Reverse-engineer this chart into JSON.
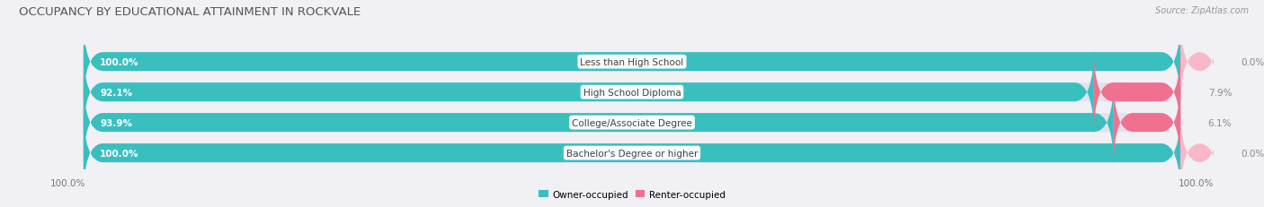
{
  "title": "OCCUPANCY BY EDUCATIONAL ATTAINMENT IN ROCKVALE",
  "source": "Source: ZipAtlas.com",
  "categories": [
    "Less than High School",
    "High School Diploma",
    "College/Associate Degree",
    "Bachelor's Degree or higher"
  ],
  "owner_values": [
    100.0,
    92.1,
    93.9,
    100.0
  ],
  "renter_values": [
    0.0,
    7.9,
    6.1,
    0.0
  ],
  "owner_color": "#3abfbf",
  "renter_color": "#f07090",
  "renter_color_light": "#f8b8c8",
  "bg_color": "#f0f0f5",
  "bar_bg_color": "#e2e2ea",
  "title_color": "#555555",
  "label_color": "#444444",
  "value_color_left": "#ffffff",
  "value_color_right": "#888888",
  "title_fontsize": 9.5,
  "cat_fontsize": 7.5,
  "val_fontsize": 7.5,
  "tick_fontsize": 7.5,
  "source_fontsize": 7.0,
  "legend_fontsize": 7.5
}
